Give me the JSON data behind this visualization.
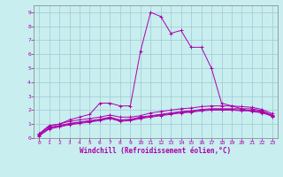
{
  "background_color": "#c8eef0",
  "grid_color": "#a0c8d0",
  "line_color": "#aa00aa",
  "xlabel": "Windchill (Refroidissement éolien,°C)",
  "xlim": [
    -0.5,
    23.5
  ],
  "ylim": [
    0,
    9.5
  ],
  "xticks": [
    0,
    1,
    2,
    3,
    4,
    5,
    6,
    7,
    8,
    9,
    10,
    11,
    12,
    13,
    14,
    15,
    16,
    17,
    18,
    19,
    20,
    21,
    22,
    23
  ],
  "yticks": [
    0,
    1,
    2,
    3,
    4,
    5,
    6,
    7,
    8,
    9
  ],
  "series": [
    [
      0.3,
      0.85,
      1.0,
      1.3,
      1.5,
      1.7,
      2.5,
      2.5,
      2.3,
      2.3,
      6.2,
      9.0,
      8.7,
      7.5,
      7.7,
      6.5,
      6.5,
      5.0,
      2.5,
      2.3,
      2.1,
      1.9,
      1.8,
      1.6
    ],
    [
      0.3,
      0.9,
      1.0,
      1.2,
      1.3,
      1.4,
      1.5,
      1.65,
      1.5,
      1.5,
      1.6,
      1.8,
      1.9,
      2.0,
      2.1,
      2.15,
      2.25,
      2.3,
      2.3,
      2.3,
      2.25,
      2.2,
      2.05,
      1.75
    ],
    [
      0.25,
      0.75,
      0.9,
      1.05,
      1.15,
      1.25,
      1.35,
      1.5,
      1.3,
      1.35,
      1.5,
      1.6,
      1.7,
      1.8,
      1.9,
      1.95,
      2.05,
      2.1,
      2.1,
      2.1,
      2.1,
      2.1,
      1.95,
      1.65
    ],
    [
      0.2,
      0.7,
      0.85,
      1.0,
      1.1,
      1.2,
      1.3,
      1.45,
      1.25,
      1.3,
      1.45,
      1.55,
      1.65,
      1.75,
      1.85,
      1.9,
      2.0,
      2.05,
      2.05,
      2.05,
      2.0,
      2.0,
      1.9,
      1.6
    ],
    [
      0.15,
      0.65,
      0.8,
      0.95,
      1.05,
      1.15,
      1.25,
      1.4,
      1.2,
      1.25,
      1.4,
      1.5,
      1.6,
      1.7,
      1.8,
      1.85,
      1.95,
      2.0,
      2.0,
      2.0,
      1.95,
      1.95,
      1.85,
      1.55
    ]
  ]
}
